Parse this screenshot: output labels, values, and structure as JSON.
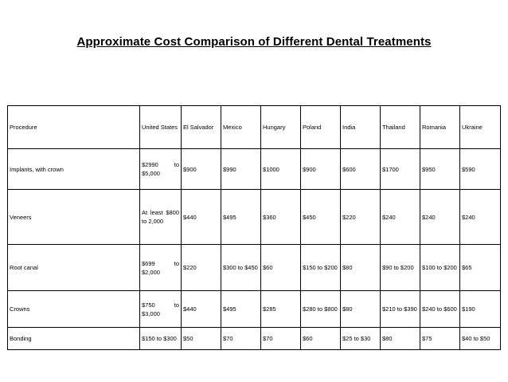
{
  "title": "Approximate Cost Comparison of Different Dental Treatments",
  "table": {
    "headers": [
      "Procedure",
      "United States",
      "El Salvador",
      "Mexico",
      "Hungary",
      "Poland",
      "India",
      "Thailand",
      "Romania",
      "Ukraine"
    ],
    "rows": [
      {
        "cells": [
          "Implants, with crown",
          "$2990 to $5,000",
          "$900",
          "$990",
          "$1000",
          "$900",
          "$600",
          "$1700",
          "$950",
          "$590"
        ]
      },
      {
        "cells": [
          "Veneers",
          "At least $800 to 2,000",
          "$440",
          "$495",
          "$360",
          "$450",
          "$220",
          "$240",
          "$240",
          "$240"
        ]
      },
      {
        "cells": [
          "Root canal",
          "$699 to $2,000",
          "$220",
          "$300 to $450",
          "$60",
          "$150 to $200",
          "$80",
          "$90 to $200",
          "$100 to $200",
          "$65"
        ]
      },
      {
        "cells": [
          "Crowns",
          "$750 to $3,000",
          "$440",
          "$495",
          "$285",
          "$280 to $800",
          "$80",
          "$210 to $390",
          "$240 to $600",
          "$190"
        ]
      },
      {
        "cells": [
          "Bonding",
          "$150 to $300",
          "$50",
          "$70",
          "$70",
          "$60",
          "$25 to $30",
          "$80",
          "$75",
          "$40 to $50"
        ]
      }
    ]
  }
}
